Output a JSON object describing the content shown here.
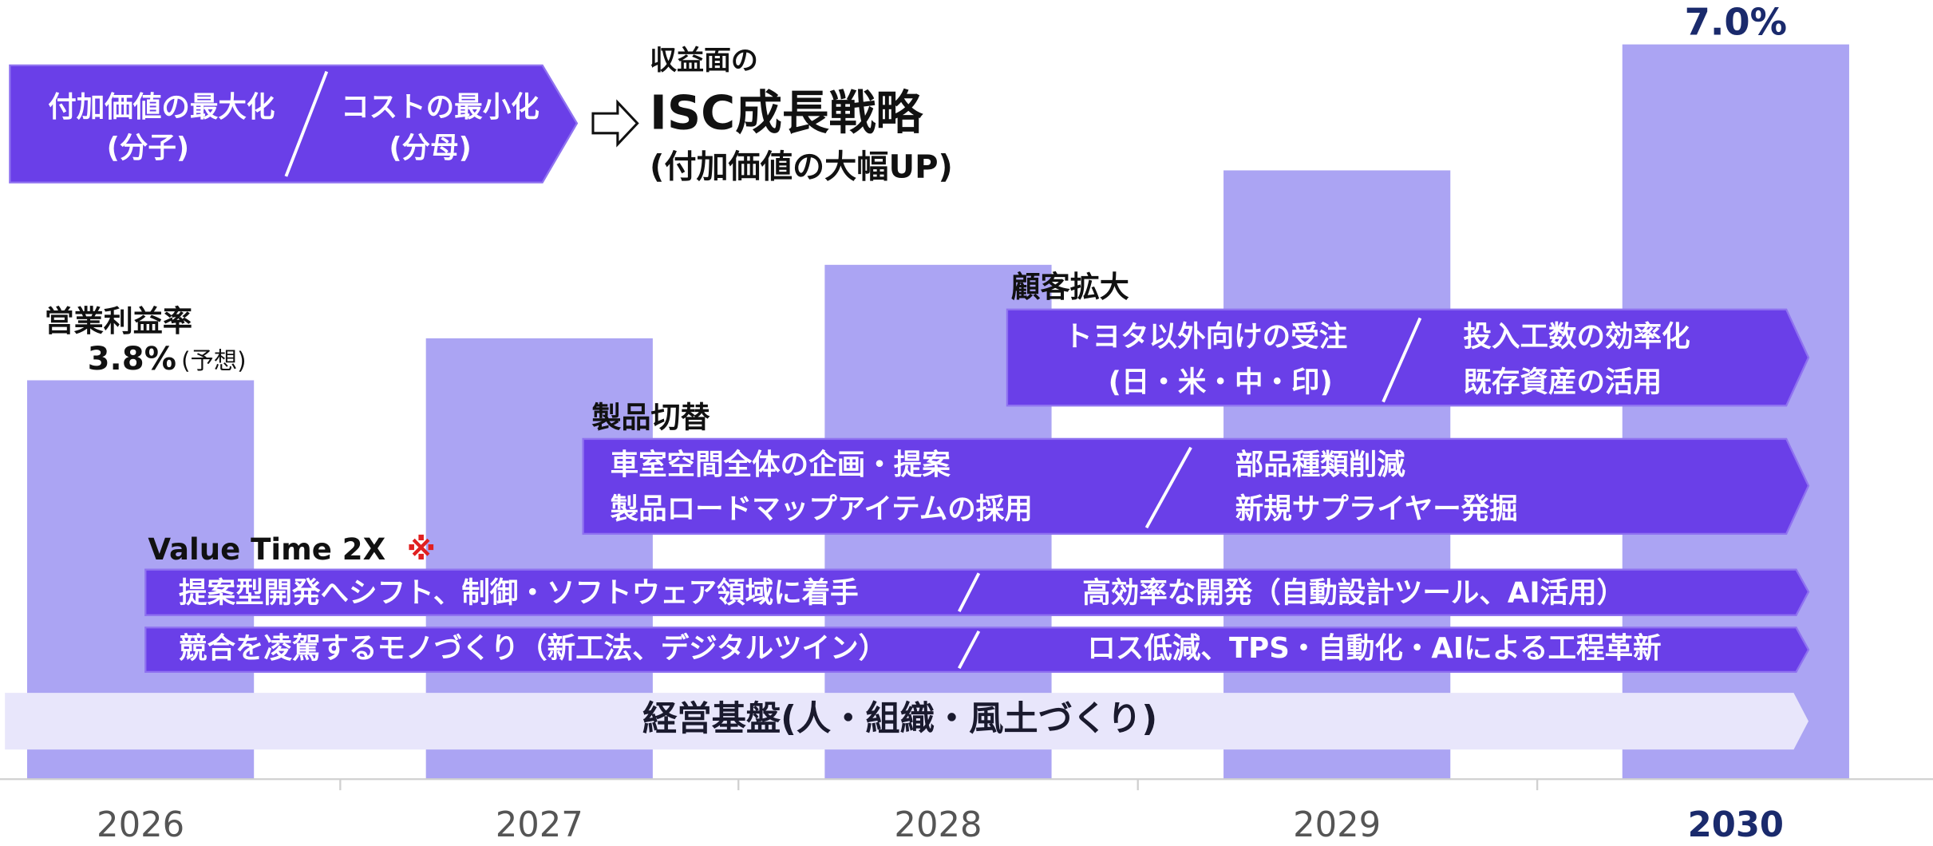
{
  "chart_data": {
    "type": "bar",
    "categories": [
      "2026",
      "2027",
      "2028",
      "2029",
      "2030"
    ],
    "values": [
      3.8,
      4.2,
      4.9,
      5.8,
      7.0
    ],
    "value_labels": [
      "3.8%",
      null,
      null,
      null,
      "7.0%"
    ],
    "color": "#aba4f3",
    "value_label_title": "営業利益率",
    "value_label_note": "(予想)"
  },
  "strategy": {
    "left": [
      "付加価値の最大化",
      "(分子)"
    ],
    "right": [
      "コストの最小化",
      "(分母)"
    ],
    "heading": "収益面の",
    "title": "ISC成長戦略",
    "subtitle": "(付加価値の大幅UP)"
  },
  "initiatives": [
    {
      "label": "顧客拡大",
      "left": [
        "トヨタ以外向けの受注",
        "(日・米・中・印)"
      ],
      "right": [
        "投入工数の効率化",
        "既存資産の活用"
      ]
    },
    {
      "label": "製品切替",
      "left": [
        "車室空間全体の企画・提案",
        "製品ロードマップアイテムの採用"
      ],
      "right": [
        "部品種類削減",
        "新規サプライヤー発掘"
      ]
    },
    {
      "label": "Value Time 2X",
      "mark": "※",
      "rows": [
        {
          "left": "提案型開発へシフト、制御・ソフトウェア領域に着手",
          "right": "高効率な開発（自動設計ツール、AI活用）"
        },
        {
          "left": "競合を凌駕するモノづくり（新工法、デジタルツイン）",
          "right": "ロス低減、TPS・自動化・AIによる工程革新"
        }
      ]
    }
  ],
  "foundation": "経営基盤(人・組織・風土づくり)"
}
